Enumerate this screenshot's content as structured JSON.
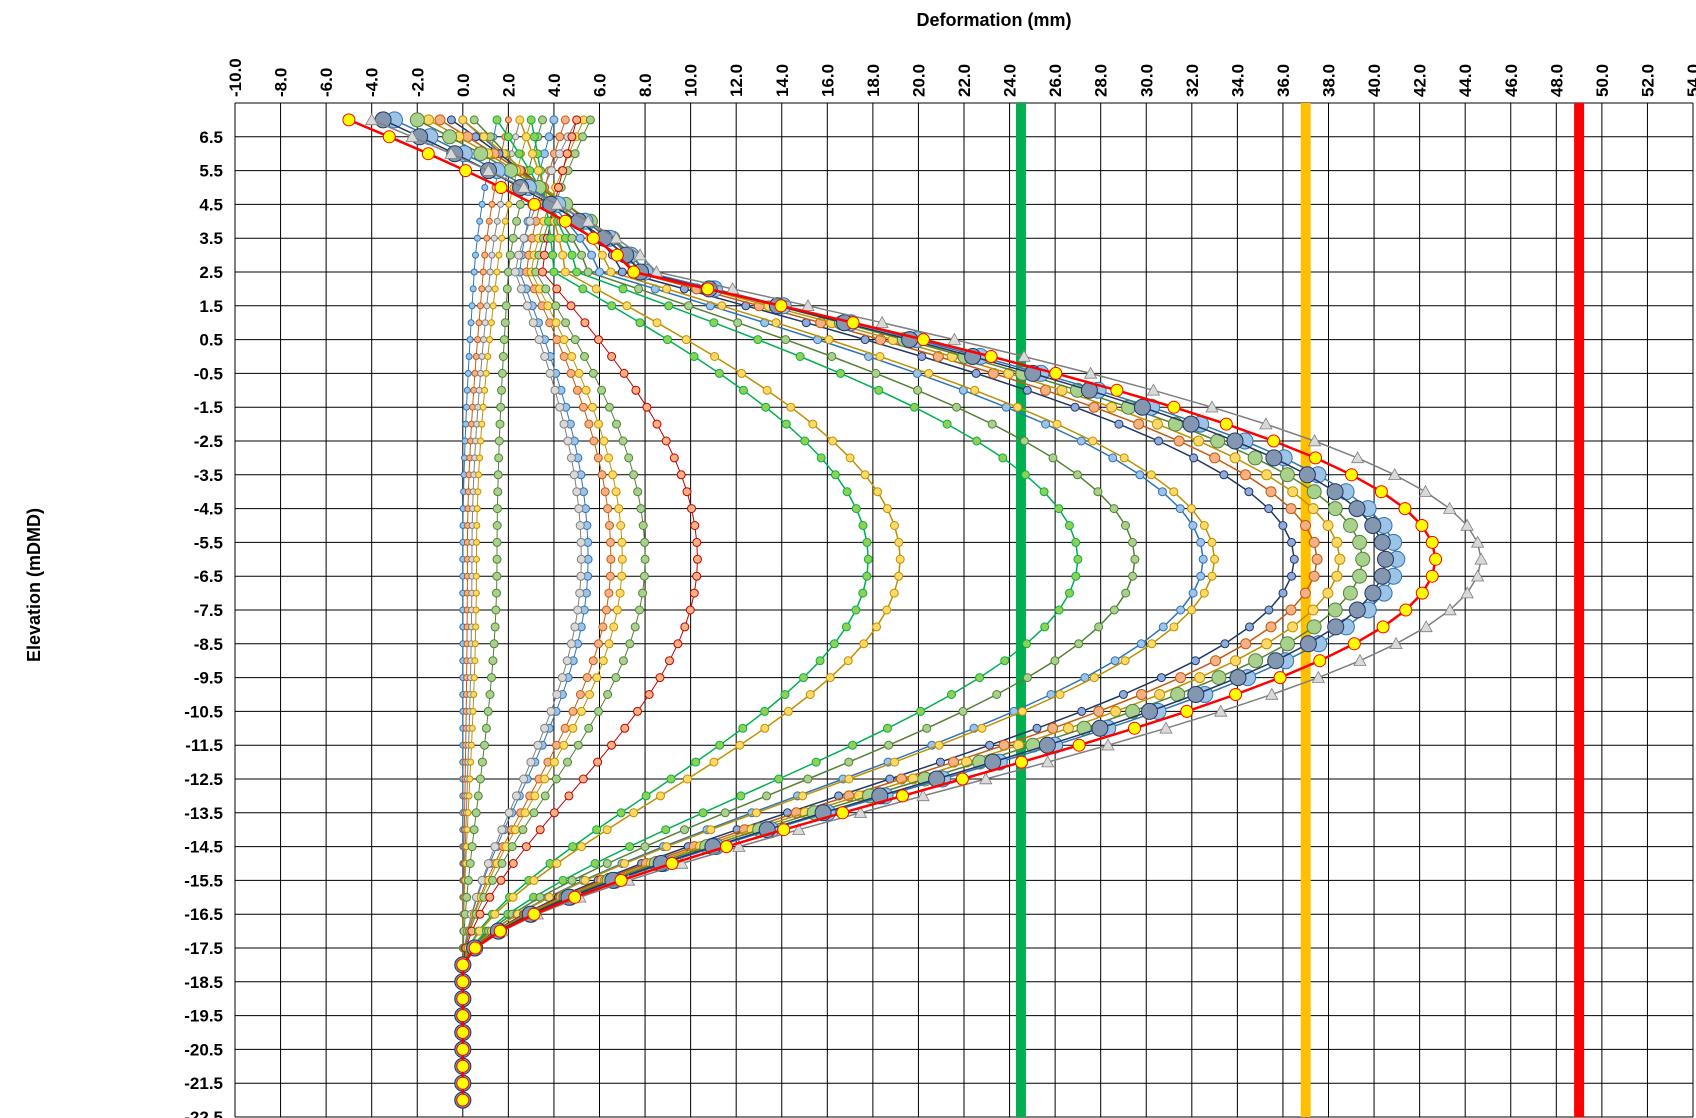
{
  "chart_data": {
    "type": "line",
    "title": "",
    "xlabel": "Deformation (mm)",
    "ylabel": "Elevation (mDMD)",
    "x_axis_position": "top",
    "xlim": [
      -10,
      54
    ],
    "x_major": 2,
    "ylim": [
      -22.5,
      7.5
    ],
    "y_major": 1,
    "x_tick_labels": [
      "-10.0",
      "-8.0",
      "-6.0",
      "-4.0",
      "-2.0",
      "0.0",
      "2.0",
      "4.0",
      "6.0",
      "8.0",
      "10.0",
      "12.0",
      "14.0",
      "16.0",
      "18.0",
      "20.0",
      "22.0",
      "24.0",
      "26.0",
      "28.0",
      "30.0",
      "32.0",
      "34.0",
      "36.0",
      "38.0",
      "40.0",
      "42.0",
      "44.0",
      "46.0",
      "48.0",
      "50.0",
      "52.0",
      "54.0"
    ],
    "y_tick_labels": [
      "6.5",
      "5.5",
      "4.5",
      "3.5",
      "2.5",
      "1.5",
      "0.5",
      "-0.5",
      "-1.5",
      "-2.5",
      "-3.5",
      "-4.5",
      "-5.5",
      "-6.5",
      "-7.5",
      "-8.5",
      "-9.5",
      "-10.5",
      "-11.5",
      "-12.5",
      "-13.5",
      "-14.5",
      "-15.5",
      "-16.5",
      "-17.5",
      "-18.5",
      "-19.5",
      "-20.5",
      "-21.5",
      "-22.5"
    ],
    "grid": true,
    "legend": "none",
    "threshold_lines": [
      {
        "x": 24.5,
        "color": "#00b050"
      },
      {
        "x": 37.0,
        "color": "#ffc000"
      },
      {
        "x": 49.0,
        "color": "#ff0000"
      }
    ],
    "series": [
      {
        "color": "#2e75b6",
        "fill": "#9dc3e6",
        "marker": "circle",
        "msize": 3,
        "peak": 0.0,
        "top": 1.5,
        "x2": 0.5,
        "lw": 1
      },
      {
        "color": "#c55a11",
        "fill": "#f4b183",
        "marker": "circle",
        "msize": 3,
        "peak": 0.2,
        "top": 2.0,
        "x2": 0.9,
        "lw": 1
      },
      {
        "color": "#7f7f7f",
        "fill": "#d9d9d9",
        "marker": "circle",
        "msize": 3,
        "peak": 0.4,
        "top": 2.5,
        "x2": 1.2,
        "lw": 1
      },
      {
        "color": "#bf9000",
        "fill": "#ffd966",
        "marker": "circle",
        "msize": 3,
        "peak": 0.6,
        "top": 3.0,
        "x2": 1.5,
        "lw": 1
      },
      {
        "color": "#538135",
        "fill": "#a9d18e",
        "marker": "circle",
        "msize": 4,
        "peak": 1.5,
        "top": 3.5,
        "x2": 2.0,
        "lw": 1
      },
      {
        "color": "#2e75b6",
        "fill": "#9dc3e6",
        "marker": "circle",
        "msize": 4,
        "peak": 5.5,
        "top": 4.0,
        "x2": 2.5,
        "lw": 1
      },
      {
        "color": "#c55a11",
        "fill": "#f4b183",
        "marker": "circle",
        "msize": 4,
        "peak": 6.5,
        "top": 4.5,
        "x2": 2.8,
        "lw": 1
      },
      {
        "color": "#7f7f7f",
        "fill": "#d9d9d9",
        "marker": "circle",
        "msize": 4,
        "peak": 5.2,
        "top": 5.0,
        "x2": 2.3,
        "lw": 1
      },
      {
        "color": "#bf9000",
        "fill": "#ffd966",
        "marker": "circle",
        "msize": 4,
        "peak": 7.0,
        "top": 5.3,
        "x2": 3.0,
        "lw": 1
      },
      {
        "color": "#538135",
        "fill": "#a9d18e",
        "marker": "circle",
        "msize": 4,
        "peak": 8.0,
        "top": 5.6,
        "x2": 3.2,
        "lw": 1
      },
      {
        "color": "#c00000",
        "fill": "#f4b183",
        "marker": "circle",
        "msize": 4,
        "peak": 10.3,
        "top": 5.0,
        "x2": 3.5,
        "lw": 1
      },
      {
        "color": "#00b050",
        "fill": "#92d050",
        "marker": "circle",
        "msize": 4,
        "peak": 17.8,
        "top": 3.0,
        "x2": 4.0,
        "lw": 1.5
      },
      {
        "color": "#bf9000",
        "fill": "#ffd966",
        "marker": "circle",
        "msize": 4,
        "peak": 19.2,
        "top": 2.5,
        "x2": 4.5,
        "lw": 1.5
      },
      {
        "color": "#00b050",
        "fill": "#92d050",
        "marker": "circle",
        "msize": 4,
        "peak": 27.0,
        "top": 1.5,
        "x2": 5.0,
        "lw": 1.5
      },
      {
        "color": "#548235",
        "fill": "#a9d18e",
        "marker": "circle",
        "msize": 4,
        "peak": 29.5,
        "top": 0.5,
        "x2": 5.5,
        "lw": 1.5
      },
      {
        "color": "#2e75b6",
        "fill": "#9dc3e6",
        "marker": "circle",
        "msize": 4,
        "peak": 32.5,
        "top": 0.0,
        "x2": 6.0,
        "lw": 1.5
      },
      {
        "color": "#bf9000",
        "fill": "#ffd966",
        "marker": "circle",
        "msize": 4,
        "peak": 33.0,
        "top": 0.0,
        "x2": 6.5,
        "lw": 1.5
      },
      {
        "color": "#203864",
        "fill": "#8faadc",
        "marker": "circle",
        "msize": 4,
        "peak": 36.5,
        "top": -0.5,
        "x2": 7.0,
        "lw": 1.5
      },
      {
        "color": "#c55a11",
        "fill": "#f4b183",
        "marker": "circle",
        "msize": 5,
        "peak": 37.5,
        "top": -1.0,
        "x2": 7.5,
        "lw": 1.5
      },
      {
        "color": "#bf9000",
        "fill": "#ffd966",
        "marker": "circle",
        "msize": 5,
        "peak": 38.5,
        "top": -1.5,
        "x2": 7.8,
        "lw": 1.5
      },
      {
        "color": "#548235",
        "fill": "#a9d18e",
        "marker": "circle",
        "msize": 7,
        "peak": 39.5,
        "top": -2.0,
        "x2": 8.0,
        "lw": 1.5
      },
      {
        "color": "#2e75b6",
        "fill": "#9dc3e6",
        "marker": "circle",
        "msize": 8,
        "peak": 41.0,
        "top": -3.0,
        "x2": 8.0,
        "lw": 1.5
      },
      {
        "color": "#203864",
        "fill": "#8497b0",
        "marker": "circle",
        "msize": 8,
        "peak": 40.5,
        "top": -3.5,
        "x2": 7.8,
        "lw": 1.5
      },
      {
        "color": "#7f7f7f",
        "fill": "#d9d9d9",
        "marker": "triangle",
        "msize": 6,
        "peak": 44.7,
        "top": -4.0,
        "x2": 8.5,
        "lw": 1.5
      },
      {
        "color": "#ff0000",
        "fill": "#ffff00",
        "marker": "circle",
        "msize": 6,
        "peak": 42.7,
        "top": -5.0,
        "x2": 7.5,
        "lw": 2.5
      }
    ]
  }
}
